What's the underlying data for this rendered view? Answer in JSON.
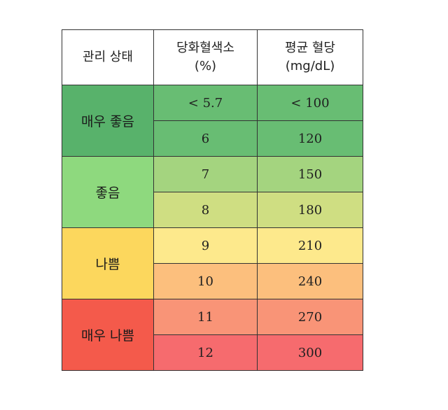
{
  "table": {
    "headers": {
      "status": "관리 상태",
      "hba1c_line1": "당화혈색소",
      "hba1c_line2": "(%)",
      "glucose_line1": "평균 혈당",
      "glucose_line2": "(mg/dL)"
    },
    "groups": [
      {
        "status": "매우 좋음",
        "status_color": "#58b26b",
        "rows": [
          {
            "hba1c": "< 5.7",
            "glucose": "< 100",
            "color": "#68bd73"
          },
          {
            "hba1c": "6",
            "glucose": "120",
            "color": "#68bd73"
          }
        ]
      },
      {
        "status": "좋음",
        "status_color": "#8ed97e",
        "rows": [
          {
            "hba1c": "7",
            "glucose": "150",
            "color": "#a4d47f"
          },
          {
            "hba1c": "8",
            "glucose": "180",
            "color": "#cfde82"
          }
        ]
      },
      {
        "status": "나쁨",
        "status_color": "#fcd75d",
        "rows": [
          {
            "hba1c": "9",
            "glucose": "210",
            "color": "#fde98c"
          },
          {
            "hba1c": "10",
            "glucose": "240",
            "color": "#fcbf7d"
          }
        ]
      },
      {
        "status": "매우 나쁨",
        "status_color": "#f45a4b",
        "rows": [
          {
            "hba1c": "11",
            "glucose": "270",
            "color": "#f99477"
          },
          {
            "hba1c": "12",
            "glucose": "300",
            "color": "#f66b6e"
          }
        ]
      }
    ]
  }
}
